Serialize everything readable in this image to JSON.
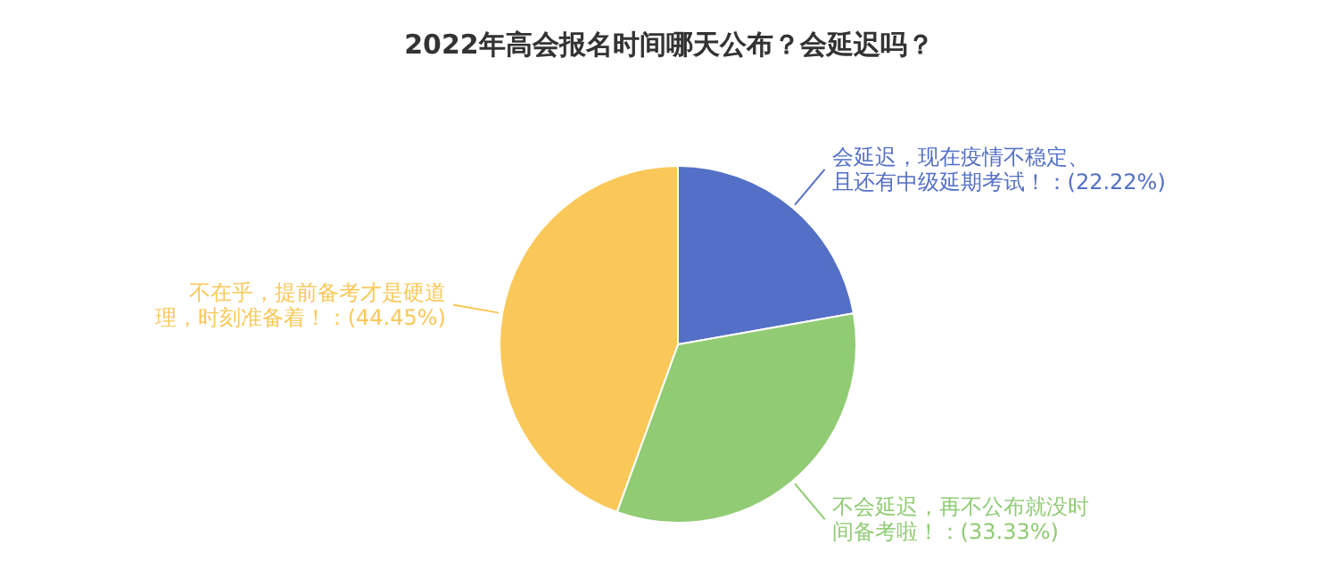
{
  "chart_data": {
    "type": "pie",
    "title": "2022年高会报名时间哪天公布？会延迟吗？",
    "categories": [
      "会延迟，现在疫情不稳定、且还有中级延期考试！",
      "不会延迟，再不公布就没时间备考啦！",
      "不在乎，提前备考才是硬道理，时刻准备着！"
    ],
    "values": [
      22.22,
      33.33,
      44.45
    ],
    "colors": [
      "#5470c6",
      "#91cc75",
      "#fac858"
    ],
    "value_labels": [
      "(22.22%)",
      "(33.33%)",
      "(44.45%)"
    ]
  }
}
